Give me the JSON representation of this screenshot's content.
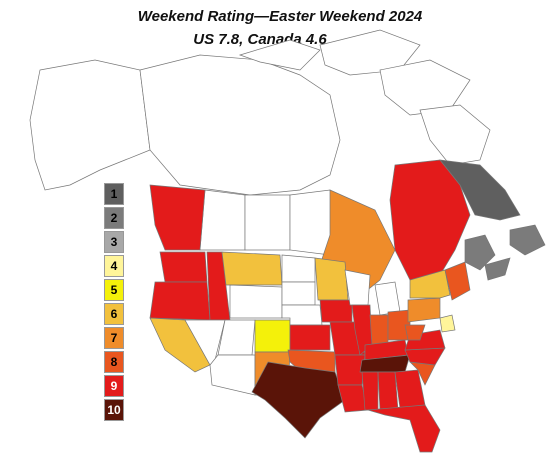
{
  "title": "Weekend Rating—Easter Weekend 2024",
  "subtitle": "US 7.8, Canada 4.6",
  "legend": [
    {
      "label": "1",
      "color": "#5f5f5f",
      "text": "#000000"
    },
    {
      "label": "2",
      "color": "#7b7b7b",
      "text": "#000000"
    },
    {
      "label": "3",
      "color": "#a8a8a8",
      "text": "#000000"
    },
    {
      "label": "4",
      "color": "#fff59a",
      "text": "#000000"
    },
    {
      "label": "5",
      "color": "#f4f10a",
      "text": "#000000"
    },
    {
      "label": "6",
      "color": "#f2c13d",
      "text": "#000000"
    },
    {
      "label": "7",
      "color": "#ef8c2a",
      "text": "#000000"
    },
    {
      "label": "8",
      "color": "#e9561f",
      "text": "#000000"
    },
    {
      "label": "9",
      "color": "#e31b1b",
      "text": "#ffffff"
    },
    {
      "label": "10",
      "color": "#5a1408",
      "text": "#ffffff"
    }
  ],
  "regions": {
    "washington": 9,
    "oregon": 9,
    "idaho": 9,
    "california": 6,
    "montana": 6,
    "colorado": 5,
    "kansas": 9,
    "oklahoma": 8,
    "texas": 10,
    "new-mexico": 7,
    "iowa": 9,
    "missouri": 9,
    "illinois": 9,
    "indiana": 8,
    "ohio": 8,
    "kentucky": 9,
    "tennessee": 10,
    "arkansas": 9,
    "louisiana": 9,
    "mississippi": 9,
    "alabama": 9,
    "georgia": 9,
    "florida": 9,
    "south-carolina": 8,
    "north-carolina": 9,
    "virginia": 9,
    "west-virginia": 8,
    "pennsylvania": 7,
    "new-york": 6,
    "maryland": 4,
    "new-england": 8,
    "minnesota": 6,
    "british-columbia": 9,
    "ontario": 7,
    "quebec": 9,
    "labrador": 1,
    "newfoundland": 2,
    "new-brunswick": 2,
    "nova-scotia": 2
  }
}
